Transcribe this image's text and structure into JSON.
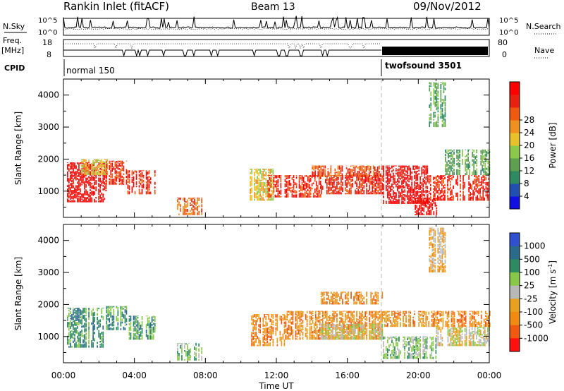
{
  "header": {
    "title": "Rankin Inlet (fitACF)",
    "beam": "Beam 13",
    "date": "09/Nov/2012"
  },
  "status_panel": {
    "nsky_label": "N.Sky",
    "nsearch_label": "N.Search",
    "freq_label_1": "Freq.",
    "freq_label_2": "[MHz]",
    "nave_label": "Nave",
    "cpid_label": "CPID",
    "noise_ticks_left": [
      "10^5",
      "10^0"
    ],
    "noise_ticks_right": [
      "10^5",
      "10^0"
    ],
    "freq_ticks": [
      "18",
      "8"
    ],
    "nave_ticks": [
      "80",
      "0"
    ],
    "cpid_segments": [
      {
        "name": "normal 150",
        "start_hour": 0,
        "end_hour": 18
      },
      {
        "name": "twofsound 3501",
        "start_hour": 18,
        "end_hour": 24
      }
    ]
  },
  "colors": {
    "power": [
      "#1010e0",
      "#2050b0",
      "#2e8a60",
      "#5fa050",
      "#8cc84a",
      "#e8c02a",
      "#f09020",
      "#f05a10",
      "#e82010",
      "#ff0000"
    ],
    "velocity": [
      "#3050d0",
      "#2a6a8a",
      "#2e8a60",
      "#88c848",
      "#b8b8b8",
      "#e8a020",
      "#f08a10",
      "#f05a10",
      "#ff1010"
    ]
  },
  "chart_data": [
    {
      "type": "heatmap",
      "panel": "power",
      "ylabel": "Slant Range [km]",
      "xlabel": "Time UT",
      "x_ticks": [
        "00:00",
        "04:00",
        "08:00",
        "12:00",
        "16:00",
        "20:00",
        "00:00"
      ],
      "x_range_hours": [
        0,
        24
      ],
      "y_ticks": [
        1000,
        2000,
        3000,
        4000
      ],
      "ylim": [
        180,
        4500
      ],
      "colorbar_label": "Power [dB]",
      "colorbar_ticks": [
        "4",
        "8",
        "12",
        "16",
        "20",
        "24",
        "28"
      ],
      "regions": [
        {
          "t0": 0.2,
          "t1": 2.4,
          "r0": 650,
          "r1": 1900,
          "v": 9
        },
        {
          "t0": 1.0,
          "t1": 2.5,
          "r0": 1500,
          "r1": 2000,
          "v": 5
        },
        {
          "t0": 2.4,
          "t1": 3.6,
          "r0": 1200,
          "r1": 1950,
          "v": 8
        },
        {
          "t0": 3.6,
          "t1": 5.2,
          "r0": 900,
          "r1": 1650,
          "v": 8
        },
        {
          "t0": 6.4,
          "t1": 7.8,
          "r0": 250,
          "r1": 800,
          "v": 7
        },
        {
          "t0": 10.5,
          "t1": 11.8,
          "r0": 700,
          "r1": 1700,
          "v": 5
        },
        {
          "t0": 11.5,
          "t1": 14.5,
          "r0": 800,
          "r1": 1500,
          "v": 8
        },
        {
          "t0": 14.5,
          "t1": 18.0,
          "r0": 900,
          "r1": 1500,
          "v": 8
        },
        {
          "t0": 14.0,
          "t1": 18.0,
          "r0": 1450,
          "r1": 1800,
          "v": 7
        },
        {
          "t0": 18.0,
          "t1": 20.5,
          "r0": 600,
          "r1": 1800,
          "v": 9
        },
        {
          "t0": 19.8,
          "t1": 21.0,
          "r0": 250,
          "r1": 800,
          "v": 9
        },
        {
          "t0": 20.5,
          "t1": 24.0,
          "r0": 700,
          "r1": 1500,
          "v": 8
        },
        {
          "t0": 21.5,
          "t1": 24.0,
          "r0": 1500,
          "r1": 2300,
          "v": 3
        },
        {
          "t0": 20.6,
          "t1": 21.5,
          "r0": 3000,
          "r1": 4400,
          "v": 3
        }
      ]
    },
    {
      "type": "heatmap",
      "panel": "velocity",
      "ylabel": "Slant Range [km]",
      "xlabel": "Time UT",
      "x_ticks": [
        "00:00",
        "04:00",
        "08:00",
        "12:00",
        "16:00",
        "20:00",
        "00:00"
      ],
      "x_range_hours": [
        0,
        24
      ],
      "y_ticks": [
        1000,
        2000,
        3000,
        4000
      ],
      "ylim": [
        180,
        4500
      ],
      "colorbar_label": "Velocity [m s^-1]",
      "colorbar_ticks": [
        "1000",
        "500",
        "100",
        "25",
        "-25",
        "-100",
        "-500",
        "-1000"
      ],
      "regions": [
        {
          "t0": 0.2,
          "t1": 2.4,
          "r0": 650,
          "r1": 1900,
          "v": 2
        },
        {
          "t0": 2.4,
          "t1": 3.6,
          "r0": 1200,
          "r1": 1950,
          "v": 2
        },
        {
          "t0": 3.6,
          "t1": 5.2,
          "r0": 900,
          "r1": 1650,
          "v": 2
        },
        {
          "t0": 6.4,
          "t1": 7.8,
          "r0": 250,
          "r1": 800,
          "v": 3
        },
        {
          "t0": 10.5,
          "t1": 12.5,
          "r0": 700,
          "r1": 1700,
          "v": 6
        },
        {
          "t0": 12.5,
          "t1": 18.0,
          "r0": 900,
          "r1": 1800,
          "v": 6
        },
        {
          "t0": 14.5,
          "t1": 18.0,
          "r0": 900,
          "r1": 1400,
          "v": 4
        },
        {
          "t0": 18.0,
          "t1": 24.0,
          "r0": 1300,
          "r1": 1800,
          "v": 6
        },
        {
          "t0": 18.0,
          "t1": 21.0,
          "r0": 300,
          "r1": 1000,
          "v": 3
        },
        {
          "t0": 21.0,
          "t1": 24.0,
          "r0": 700,
          "r1": 1300,
          "v": 4
        },
        {
          "t0": 14.5,
          "t1": 18.0,
          "r0": 2000,
          "r1": 2400,
          "v": 6
        },
        {
          "t0": 20.6,
          "t1": 21.5,
          "r0": 3000,
          "r1": 4400,
          "v": 5
        }
      ]
    }
  ]
}
